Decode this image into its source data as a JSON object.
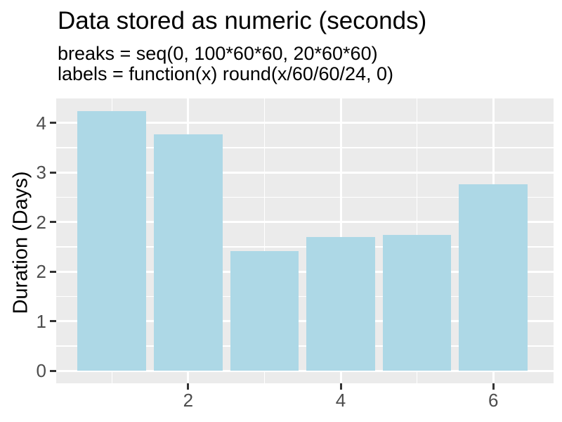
{
  "chart_data": {
    "type": "bar",
    "title": "Data stored as numeric (seconds)",
    "subtitle_lines": [
      "breaks = seq(0, 100*60*60, 20*60*60)",
      "labels = function(x) round(x/60/60/24, 0)"
    ],
    "ylabel": "Duration (Days)",
    "xlabel": "",
    "x": [
      1,
      2,
      3,
      4,
      5,
      6
    ],
    "values_days": [
      4.36,
      3.98,
      2.01,
      2.25,
      2.29,
      3.14
    ],
    "bar_width": 0.9,
    "xlim": [
      0.27,
      6.79
    ],
    "ylim_days": [
      -0.21,
      4.59
    ],
    "x_ticks": {
      "values": [
        2,
        4,
        6
      ],
      "labels": [
        "2",
        "4",
        "6"
      ]
    },
    "y_ticks": {
      "values_days": [
        0,
        0.8333,
        1.6667,
        2.5,
        3.3333,
        4.1667
      ],
      "values_seconds": [
        0,
        72000,
        144000,
        216000,
        288000,
        360000
      ],
      "labels": [
        "0",
        "1",
        "2",
        "2",
        "3",
        "4"
      ]
    },
    "x_minor": [
      1,
      3,
      5
    ],
    "y_minor_days": [
      0.4167,
      1.25,
      2.0833,
      2.9167,
      3.75,
      4.5833
    ],
    "grid": true,
    "legend": "none",
    "colors": {
      "bar": "#ADD8E6",
      "panel": "#EBEBEB",
      "gridline": "#FFFFFF",
      "tick_label": "#4D4D4D",
      "tick_mark": "#333333",
      "text": "#000000",
      "background": "#FFFFFF"
    }
  }
}
